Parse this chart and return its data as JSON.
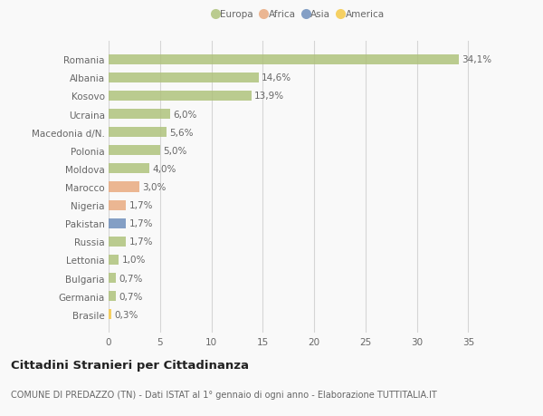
{
  "countries": [
    "Romania",
    "Albania",
    "Kosovo",
    "Ucraina",
    "Macedonia d/N.",
    "Polonia",
    "Moldova",
    "Marocco",
    "Nigeria",
    "Pakistan",
    "Russia",
    "Lettonia",
    "Bulgaria",
    "Germania",
    "Brasile"
  ],
  "values": [
    34.1,
    14.6,
    13.9,
    6.0,
    5.6,
    5.0,
    4.0,
    3.0,
    1.7,
    1.7,
    1.7,
    1.0,
    0.7,
    0.7,
    0.3
  ],
  "labels": [
    "34,1%",
    "14,6%",
    "13,9%",
    "6,0%",
    "5,6%",
    "5,0%",
    "4,0%",
    "3,0%",
    "1,7%",
    "1,7%",
    "1,7%",
    "1,0%",
    "0,7%",
    "0,7%",
    "0,3%"
  ],
  "colors": [
    "#adc178",
    "#adc178",
    "#adc178",
    "#adc178",
    "#adc178",
    "#adc178",
    "#adc178",
    "#e8a87c",
    "#e8a87c",
    "#6b8cba",
    "#adc178",
    "#adc178",
    "#adc178",
    "#adc178",
    "#f5c842"
  ],
  "legend_labels": [
    "Europa",
    "Africa",
    "Asia",
    "America"
  ],
  "legend_colors": [
    "#adc178",
    "#e8a87c",
    "#6b8cba",
    "#f5c842"
  ],
  "title": "Cittadini Stranieri per Cittadinanza",
  "subtitle": "COMUNE DI PREDAZZO (TN) - Dati ISTAT al 1° gennaio di ogni anno - Elaborazione TUTTITALIA.IT",
  "xlim": [
    0,
    37
  ],
  "xticks": [
    0,
    5,
    10,
    15,
    20,
    25,
    30,
    35
  ],
  "bg_color": "#f9f9f9",
  "grid_color": "#d5d5d5",
  "bar_height": 0.55,
  "label_fontsize": 7.5,
  "tick_fontsize": 7.5,
  "title_fontsize": 9.5,
  "subtitle_fontsize": 7.0
}
